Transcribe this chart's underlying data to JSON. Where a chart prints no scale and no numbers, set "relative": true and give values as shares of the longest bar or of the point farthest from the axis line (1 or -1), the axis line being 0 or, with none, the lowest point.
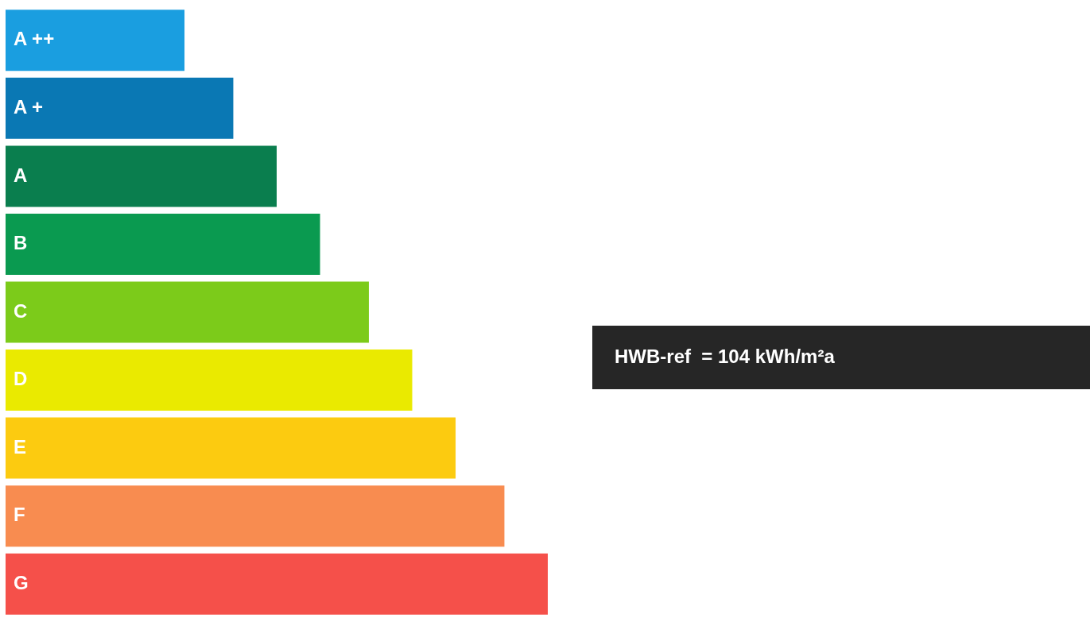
{
  "chart_data": {
    "type": "bar",
    "orientation": "horizontal",
    "relative": true,
    "categories": [
      "A ++",
      "A +",
      "A",
      "B",
      "C",
      "D",
      "E",
      "F",
      "G"
    ],
    "values": [
      0.33,
      0.42,
      0.5,
      0.58,
      0.67,
      0.75,
      0.83,
      0.92,
      1
    ],
    "colors": [
      "#1a9ee0",
      "#0a78b4",
      "#0a7e4e",
      "#0a9a50",
      "#7ccb1a",
      "#eaea00",
      "#fccb10",
      "#f88c50",
      "#f5504a"
    ],
    "annotations": [
      "HWB-ref  = 104 kWh/m²a"
    ],
    "legend": false
  }
}
